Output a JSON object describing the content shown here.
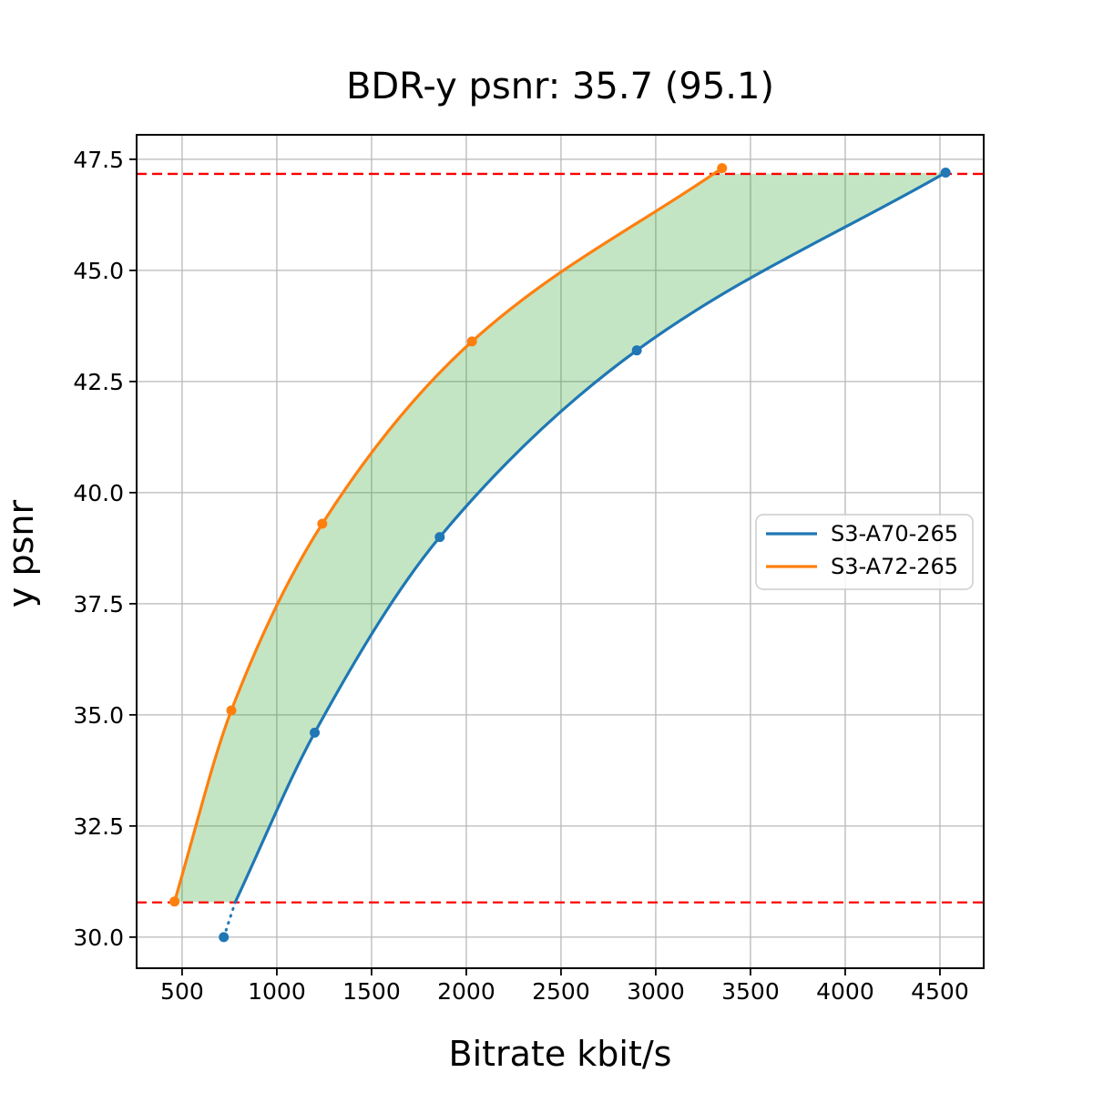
{
  "chart_data": {
    "type": "line",
    "title": "BDR-y psnr: 35.7 (95.1)",
    "xlabel": "Bitrate kbit/s",
    "ylabel": "y psnr",
    "xlim": [
      260,
      4731
    ],
    "ylim": [
      29.3,
      48.05
    ],
    "x_ticks": [
      500,
      1000,
      1500,
      2000,
      2500,
      3000,
      3500,
      4000,
      4500
    ],
    "y_ticks": [
      30.0,
      32.5,
      35.0,
      37.5,
      40.0,
      42.5,
      45.0,
      47.5
    ],
    "grid": true,
    "series": [
      {
        "name": "S3-A70-265",
        "color": "#1f77b4",
        "points": [
          [
            720,
            30.0
          ],
          [
            1200,
            34.6
          ],
          [
            1860,
            39.0
          ],
          [
            2900,
            43.2
          ],
          [
            4530,
            47.2
          ]
        ],
        "solid_points": [
          [
            780,
            30.78
          ],
          [
            1200,
            34.6
          ],
          [
            1860,
            39.0
          ],
          [
            2900,
            43.2
          ],
          [
            4530,
            47.2
          ]
        ],
        "dotted_segment": [
          [
            720,
            30.0
          ],
          [
            780,
            30.78
          ]
        ]
      },
      {
        "name": "S3-A72-265",
        "color": "#ff7f0e",
        "points": [
          [
            460,
            30.8
          ],
          [
            760,
            35.1
          ],
          [
            1240,
            39.3
          ],
          [
            2030,
            43.4
          ],
          [
            3350,
            47.3
          ]
        ],
        "solid_points": [
          [
            460,
            30.8
          ],
          [
            760,
            35.1
          ],
          [
            1240,
            39.3
          ],
          [
            2030,
            43.4
          ],
          [
            3350,
            47.3
          ]
        ]
      }
    ],
    "reference_lines": [
      {
        "axis": "y",
        "value": 47.17,
        "color": "#ff0000",
        "style": "dashed"
      },
      {
        "axis": "y",
        "value": 30.78,
        "color": "#ff0000",
        "style": "dashed"
      }
    ],
    "shaded_region": {
      "between": [
        "S3-A72-265",
        "S3-A70-265"
      ],
      "color": "#2ca02c",
      "opacity": 0.28
    },
    "legend": {
      "position": "right-center",
      "entries": [
        "S3-A70-265",
        "S3-A72-265"
      ]
    }
  }
}
